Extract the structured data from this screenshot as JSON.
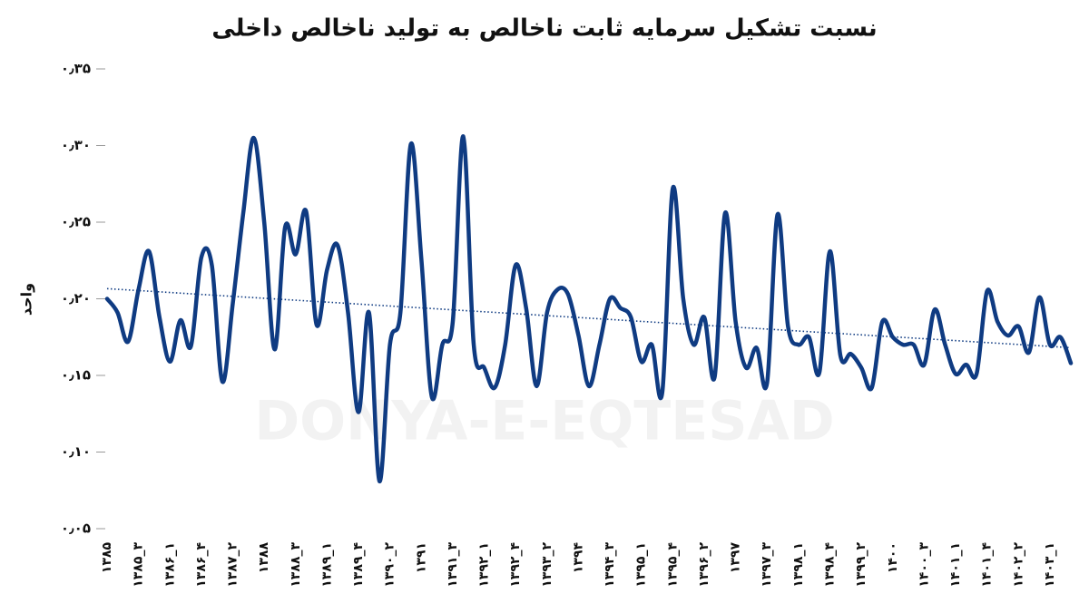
{
  "chart_data": {
    "type": "line",
    "title": "نسبت تشکیل سرمایه ثابت ناخالص به تولید ناخالص داخلی",
    "y_label": "واحد",
    "watermark": "DONYA-E-EQTESAD",
    "trendline": true,
    "categories": [
      "۱۳۸۵",
      null,
      null,
      "۱۳۸۵_۳",
      null,
      null,
      "۱۳۸۶_۱",
      null,
      null,
      "۱۳۸۶_۴",
      null,
      null,
      "۱۳۸۷_۲",
      null,
      null,
      "۱۳۸۸",
      null,
      null,
      "۱۳۸۸_۳",
      null,
      null,
      "۱۳۸۹_۱",
      null,
      null,
      "۱۳۸۹_۴",
      null,
      null,
      "۱۳۹۰_۲",
      null,
      null,
      "۱۳۹۱",
      null,
      null,
      "۱۳۹۱_۳",
      null,
      null,
      "۱۳۹۲_۱",
      null,
      null,
      "۱۳۹۲_۴",
      null,
      null,
      "۱۳۹۳_۲",
      null,
      null,
      "۱۳۹۴",
      null,
      null,
      "۱۳۹۴_۳",
      null,
      null,
      "۱۳۹۵_۱",
      null,
      null,
      "۱۳۹۵_۴",
      null,
      null,
      "۱۳۹۶_۲",
      null,
      null,
      "۱۳۹۷",
      null,
      null,
      "۱۳۹۷_۳",
      null,
      null,
      "۱۳۹۸_۱",
      null,
      null,
      "۱۳۹۸_۴",
      null,
      null,
      "۱۳۹۹_۲",
      null,
      null,
      "۱۴۰۰",
      null,
      null,
      "۱۴۰۰_۳",
      null,
      null,
      "۱۴۰۱_۱",
      null,
      null,
      "۱۴۰۱_۴",
      null,
      null,
      "۱۴۰۲_۲",
      null,
      null,
      "۱۴۰۳_۱",
      null,
      null
    ],
    "series": [
      {
        "color": "#0f3b82",
        "values": [
          0.2,
          0.191,
          0.172,
          0.206,
          0.231,
          0.188,
          0.159,
          0.186,
          0.169,
          0.227,
          0.222,
          0.146,
          0.197,
          0.256,
          0.305,
          0.25,
          0.167,
          0.247,
          0.229,
          0.257,
          0.183,
          0.219,
          0.235,
          0.191,
          0.126,
          0.191,
          0.081,
          0.17,
          0.191,
          0.301,
          0.226,
          0.136,
          0.17,
          0.185,
          0.306,
          0.17,
          0.155,
          0.142,
          0.17,
          0.222,
          0.194,
          0.143,
          0.191,
          0.206,
          0.203,
          0.176,
          0.143,
          0.17,
          0.2,
          0.194,
          0.188,
          0.159,
          0.17,
          0.139,
          0.272,
          0.2,
          0.17,
          0.188,
          0.149,
          0.256,
          0.185,
          0.155,
          0.168,
          0.145,
          0.255,
          0.182,
          0.17,
          0.175,
          0.152,
          0.231,
          0.163,
          0.164,
          0.155,
          0.142,
          0.185,
          0.175,
          0.17,
          0.17,
          0.157,
          0.193,
          0.17,
          0.151,
          0.157,
          0.151,
          0.205,
          0.185,
          0.176,
          0.182,
          0.165,
          0.201,
          0.17,
          0.175,
          0.158
        ]
      }
    ],
    "ylim": [
      0.05,
      0.35
    ],
    "yticks": [
      {
        "value": 0.05,
        "label": "۰٫۰۵"
      },
      {
        "value": 0.1,
        "label": "۰٫۱۰"
      },
      {
        "value": 0.15,
        "label": "۰٫۱۵"
      },
      {
        "value": 0.2,
        "label": "۰٫۲۰"
      },
      {
        "value": 0.25,
        "label": "۰٫۲۵"
      },
      {
        "value": 0.3,
        "label": "۰٫۳۰"
      },
      {
        "value": 0.35,
        "label": "۰٫۳۵"
      }
    ]
  }
}
